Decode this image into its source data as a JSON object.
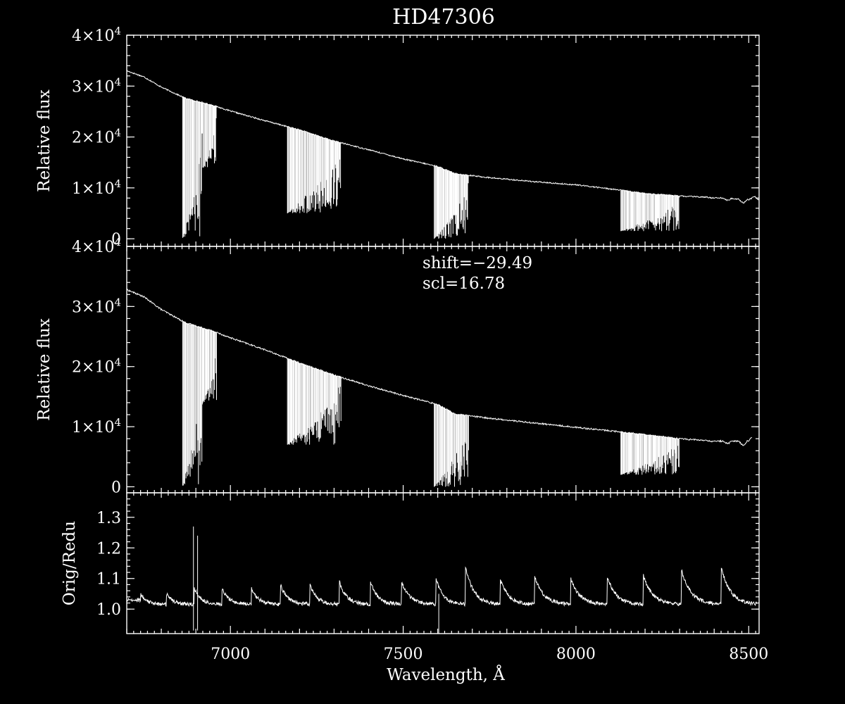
{
  "chart_data": {
    "type": "line",
    "title": "HD47306",
    "xlabel": "Wavelength, Å",
    "xlim": [
      6700,
      8530
    ],
    "x_ticks": [
      7000,
      7500,
      8000,
      8500
    ],
    "panels": [
      {
        "id": "top",
        "ylabel": "Relative flux",
        "ylim": [
          -1500,
          40000
        ],
        "y_ticks": [
          {
            "value": 0,
            "label": "0"
          },
          {
            "value": 10000,
            "mant": "1",
            "exp": "4"
          },
          {
            "value": 20000,
            "mant": "2",
            "exp": "4"
          },
          {
            "value": 30000,
            "mant": "3",
            "exp": "4"
          },
          {
            "value": 40000,
            "mant": "4",
            "exp": "4"
          }
        ],
        "continuum": {
          "x": [
            6700,
            6750,
            6800,
            6870,
            6950,
            7000,
            7100,
            7200,
            7300,
            7400,
            7500,
            7600,
            7650,
            7750,
            7900,
            8000,
            8100,
            8200,
            8300,
            8400,
            8500,
            8530
          ],
          "y": [
            33000,
            31800,
            29800,
            27600,
            26200,
            25100,
            23200,
            21400,
            19200,
            17500,
            15700,
            14200,
            12800,
            12000,
            11100,
            10600,
            9800,
            8900,
            8400,
            8100,
            7700,
            8700
          ]
        },
        "absorption_bands": [
          {
            "x0": 6862,
            "x1": 6920,
            "min": 200
          },
          {
            "x0": 6920,
            "x1": 6960,
            "min": 14000
          },
          {
            "x0": 7165,
            "x1": 7320,
            "min": 5000
          },
          {
            "x0": 7590,
            "x1": 7690,
            "min": 0
          },
          {
            "x0": 8130,
            "x1": 8300,
            "min": 1500
          }
        ]
      },
      {
        "id": "middle",
        "ylabel": "Relative flux",
        "ylim": [
          -1000,
          40000
        ],
        "annotations": [
          "shift=−29.49",
          "scl=16.78"
        ],
        "y_ticks": [
          {
            "value": 0,
            "label": "0"
          },
          {
            "value": 10000,
            "mant": "1",
            "exp": "4"
          },
          {
            "value": 20000,
            "mant": "2",
            "exp": "4"
          },
          {
            "value": 30000,
            "mant": "3",
            "exp": "4"
          },
          {
            "value": 40000,
            "mant": "4",
            "exp": "4"
          }
        ],
        "continuum": {
          "x": [
            6700,
            6750,
            6800,
            6870,
            6950,
            7000,
            7100,
            7200,
            7300,
            7400,
            7500,
            7600,
            7650,
            7750,
            7900,
            8000,
            8100,
            8200,
            8300,
            8400,
            8500,
            8510
          ],
          "y": [
            32800,
            31600,
            29500,
            27300,
            25900,
            24800,
            22800,
            20600,
            18600,
            16800,
            15200,
            13700,
            12100,
            11400,
            10500,
            9900,
            9300,
            8700,
            8000,
            7600,
            7600,
            8300
          ]
        },
        "absorption_bands": [
          {
            "x0": 6862,
            "x1": 6920,
            "min": 200
          },
          {
            "x0": 6920,
            "x1": 6960,
            "min": 14000
          },
          {
            "x0": 7165,
            "x1": 7320,
            "min": 7000
          },
          {
            "x0": 7590,
            "x1": 7690,
            "min": 0
          },
          {
            "x0": 8130,
            "x1": 8300,
            "min": 2000
          }
        ]
      },
      {
        "id": "bottom",
        "ylabel": "Orig/Redu",
        "ylim": [
          0.92,
          1.38
        ],
        "y_ticks": [
          {
            "value": 1.0,
            "label": "1.0"
          },
          {
            "value": 1.1,
            "label": "1.1"
          },
          {
            "value": 1.2,
            "label": "1.2"
          },
          {
            "value": 1.3,
            "label": "1.3"
          }
        ],
        "ratio_peaks": {
          "x": [
            6740,
            6815,
            6895,
            6975,
            7060,
            7145,
            7230,
            7315,
            7405,
            7495,
            7595,
            7680,
            7780,
            7880,
            7985,
            8090,
            8195,
            8305,
            8420
          ],
          "y": [
            1.05,
            1.05,
            1.07,
            1.07,
            1.07,
            1.08,
            1.08,
            1.09,
            1.09,
            1.09,
            1.1,
            1.14,
            1.1,
            1.11,
            1.1,
            1.11,
            1.11,
            1.13,
            1.14
          ]
        },
        "spikes": [
          {
            "x": 6893,
            "min": 0.93,
            "max": 1.27
          },
          {
            "x": 6905,
            "min": 0.93,
            "max": 1.24
          },
          {
            "x": 7603,
            "min": 0.92,
            "max": 1.05
          }
        ]
      }
    ]
  }
}
